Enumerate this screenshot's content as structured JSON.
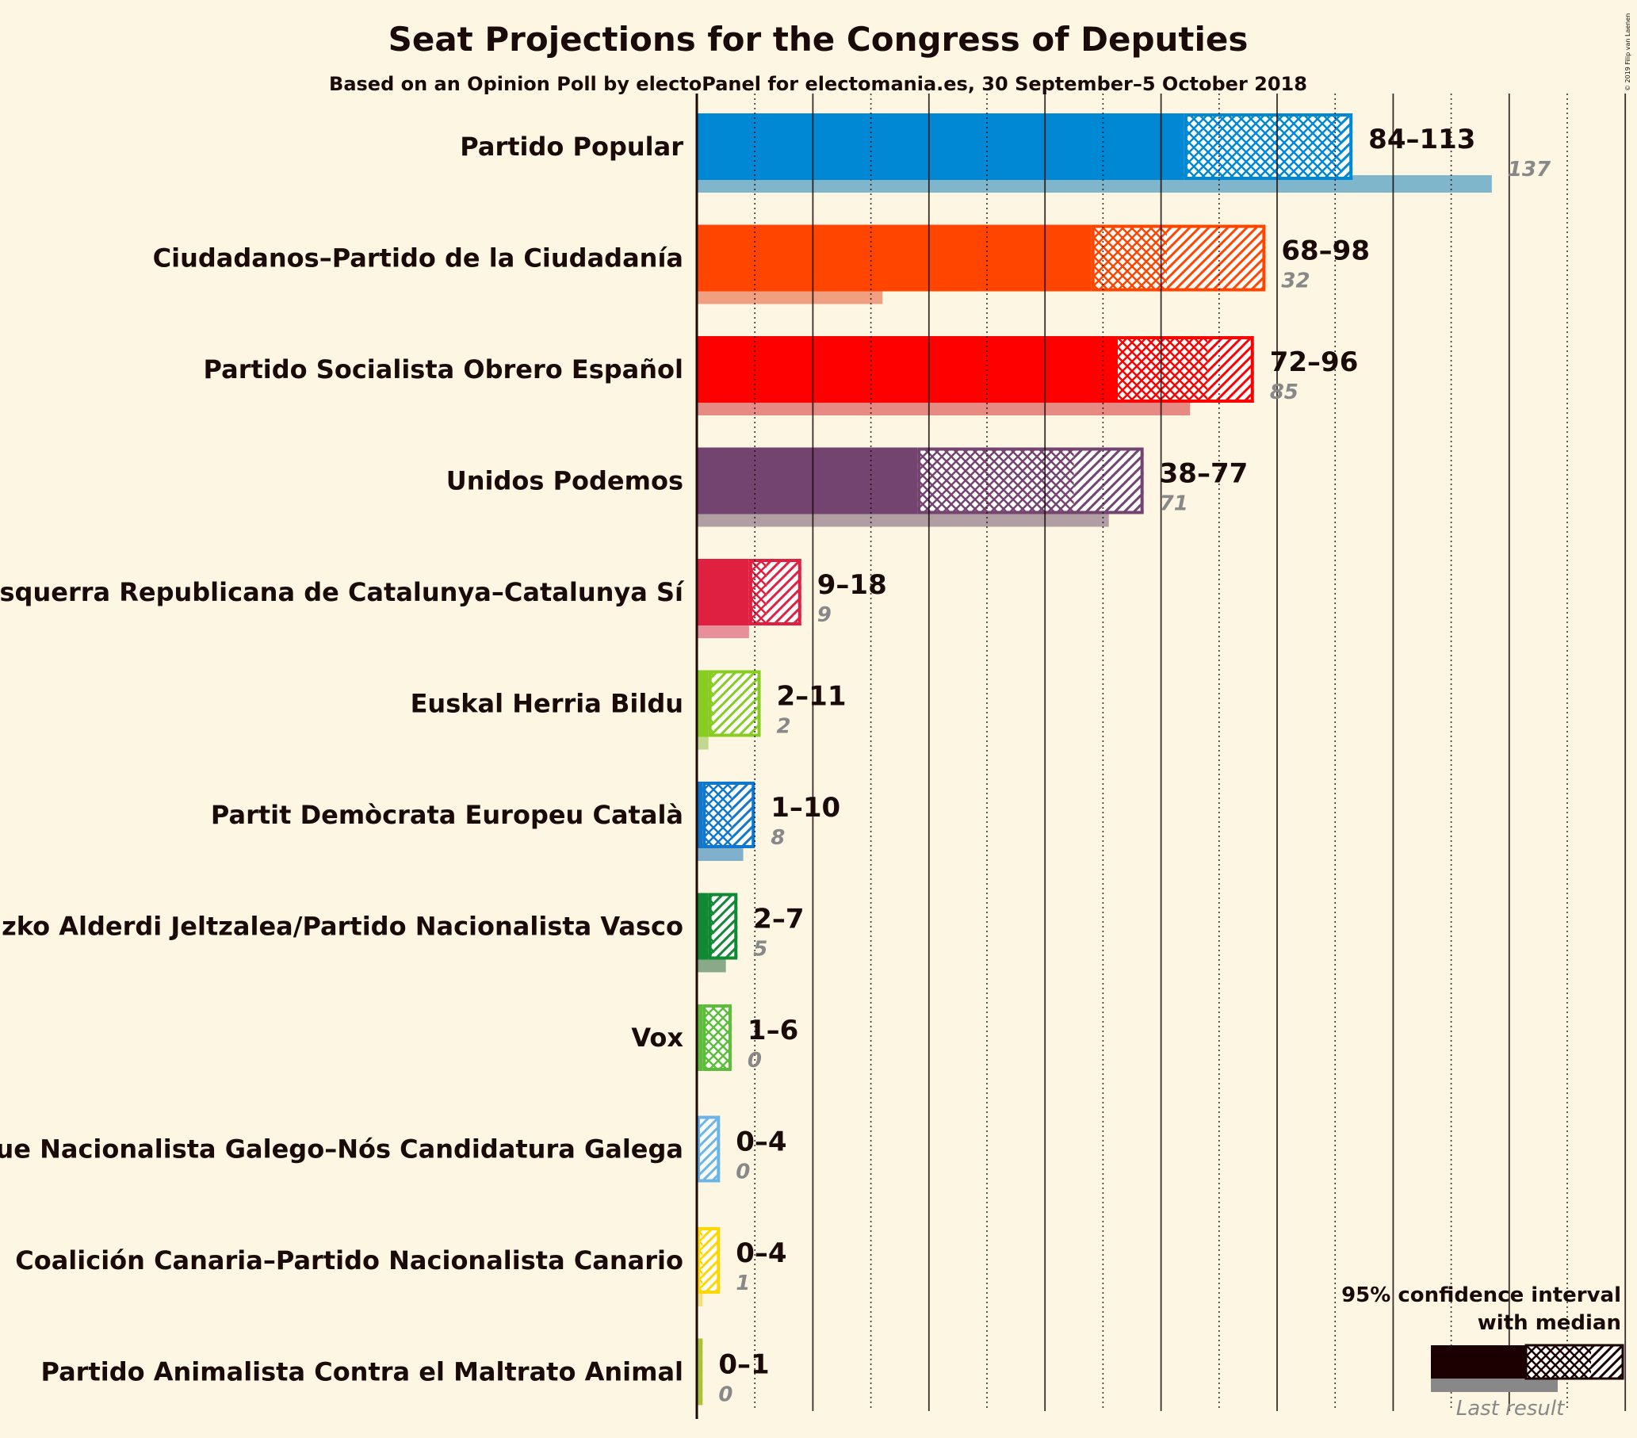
{
  "title": "Seat Projections for the Congress of Deputies",
  "subtitle": "Based on an Opinion Poll by electoPanel for electomania.es, 30 September–5 October 2018",
  "copyright": "© 2019 Filip van Laenen",
  "legend": {
    "line1": "95% confidence interval",
    "line2": "with median",
    "last_result": "Last result"
  },
  "chart_data": {
    "type": "bar",
    "orientation": "horizontal",
    "x_unit": "seats",
    "xlim": [
      0,
      160
    ],
    "gridlines_every": 10,
    "series_fields": [
      "ci_low",
      "median",
      "ci_high",
      "last_result"
    ],
    "parties": [
      {
        "name": "Partido Popular",
        "color": "#0088d4",
        "light": "#7fb6cc",
        "ci_low": 84,
        "median": 111,
        "ci_high": 113,
        "last_result": 137,
        "range_label": "84–113",
        "last_label": "137"
      },
      {
        "name": "Ciudadanos–Partido de la Ciudadanía",
        "color": "#ff4500",
        "light": "#f0a080",
        "ci_low": 68,
        "median": 81,
        "ci_high": 98,
        "last_result": 32,
        "range_label": "68–98",
        "last_label": "32"
      },
      {
        "name": "Partido Socialista Obrero Español",
        "color": "#ff0000",
        "light": "#e88a84",
        "ci_low": 72,
        "median": 88,
        "ci_high": 96,
        "last_result": 85,
        "range_label": "72–96",
        "last_label": "85"
      },
      {
        "name": "Unidos Podemos",
        "color": "#734470",
        "light": "#b09ea2",
        "ci_low": 38,
        "median": 65,
        "ci_high": 77,
        "last_result": 71,
        "range_label": "38–77",
        "last_label": "71"
      },
      {
        "name": "Esquerra Republicana de Catalunya–Catalunya Sí",
        "color": "#e02040",
        "light": "#e8909a",
        "ci_low": 9,
        "median": 12,
        "ci_high": 18,
        "last_result": 9,
        "range_label": "9–18",
        "last_label": "9"
      },
      {
        "name": "Euskal Herria Bildu",
        "color": "#88cc22",
        "light": "#c0d890",
        "ci_low": 2,
        "median": 3,
        "ci_high": 11,
        "last_result": 2,
        "range_label": "2–11",
        "last_label": "2"
      },
      {
        "name": "Partit Demòcrata Europeu Català",
        "color": "#1177cc",
        "light": "#80b0cc",
        "ci_low": 1,
        "median": 6,
        "ci_high": 10,
        "last_result": 8,
        "range_label": "1–10",
        "last_label": "8"
      },
      {
        "name": "Euzko Alderdi Jeltzalea/Partido Nacionalista Vasco",
        "color": "#118833",
        "light": "#88aa88",
        "ci_low": 2,
        "median": 3,
        "ci_high": 7,
        "last_result": 5,
        "range_label": "2–7",
        "last_label": "5"
      },
      {
        "name": "Vox",
        "color": "#5dbd3b",
        "light": "#b0d8a0",
        "ci_low": 1,
        "median": 6,
        "ci_high": 6,
        "last_result": 0,
        "range_label": "1–6",
        "last_label": "0"
      },
      {
        "name": "Bloque Nacionalista Galego–Nós Candidatura Galega",
        "color": "#6bb5e6",
        "light": "#b0d4ec",
        "ci_low": 0,
        "median": 0,
        "ci_high": 4,
        "last_result": 0,
        "range_label": "0–4",
        "last_label": "0"
      },
      {
        "name": "Coalición Canaria–Partido Nacionalista Canario",
        "color": "#ffd700",
        "light": "#f0e080",
        "ci_low": 0,
        "median": 1,
        "ci_high": 4,
        "last_result": 1,
        "range_label": "0–4",
        "last_label": "1"
      },
      {
        "name": "Partido Animalista Contra el Maltrato Animal",
        "color": "#aac23a",
        "light": "#d4e0a0",
        "ci_low": 0,
        "median": 0,
        "ci_high": 1,
        "last_result": 0,
        "range_label": "0–1",
        "last_label": "0"
      }
    ]
  }
}
